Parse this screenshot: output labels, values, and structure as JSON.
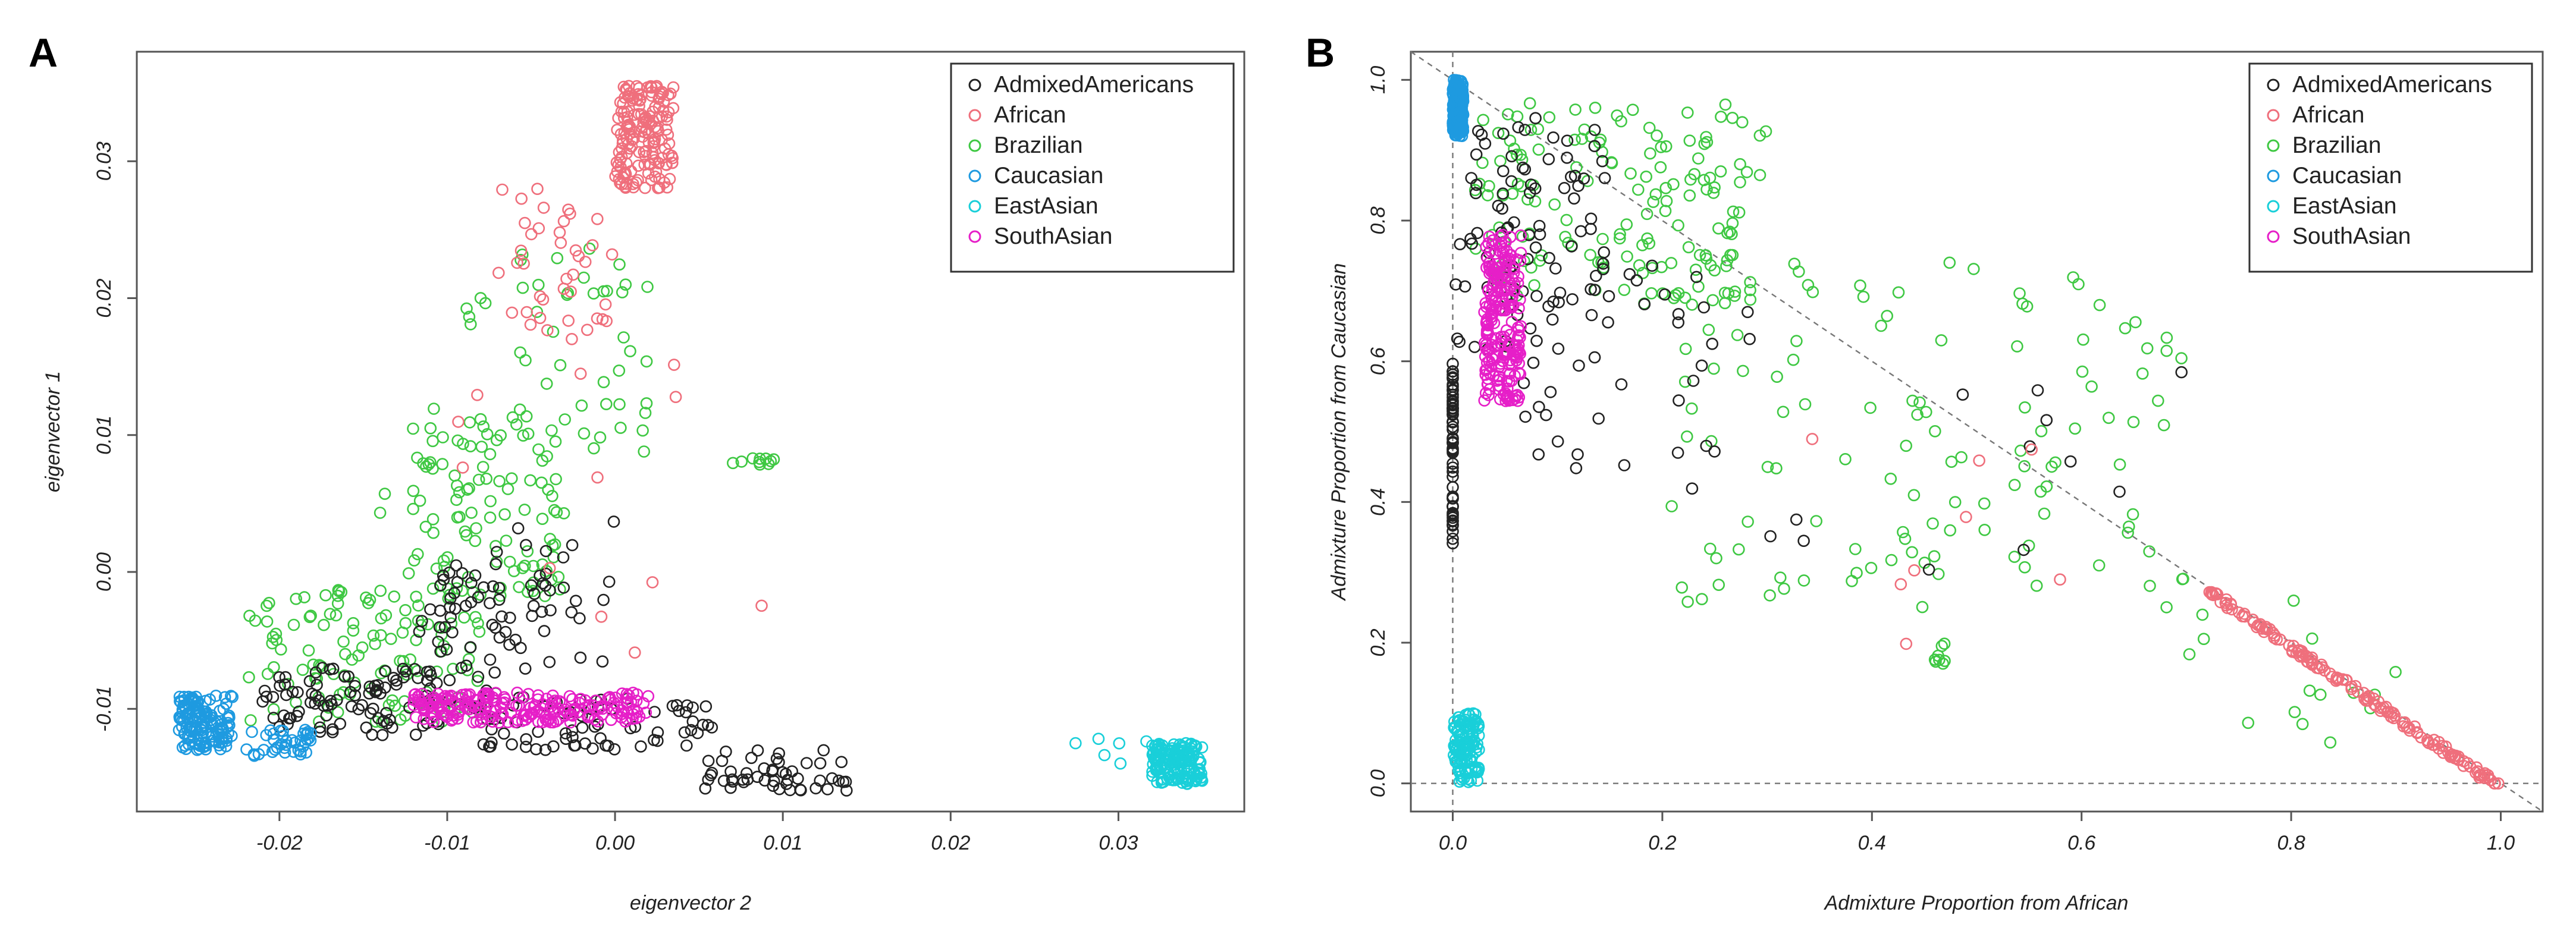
{
  "colors": {
    "AdmixedAmericans": "#222222",
    "African": "#ef6f7c",
    "Brazilian": "#3fc843",
    "Caucasian": "#1e9ae0",
    "EastAsian": "#19cfd9",
    "SouthAsian": "#e61fc8"
  },
  "chart_data": [
    {
      "type": "scatter",
      "panel": "A",
      "title": "",
      "xlabel": "eigenvector 2",
      "ylabel": "eigenvector 1",
      "xlim": [
        -0.0285,
        0.0375
      ],
      "ylim": [
        -0.0175,
        0.038
      ],
      "xticks": [
        -0.02,
        -0.01,
        0.0,
        0.01,
        0.02,
        0.03
      ],
      "xtick_labels": [
        "-0.02",
        "-0.01",
        "0.00",
        "0.01",
        "0.02",
        "0.03"
      ],
      "yticks": [
        -0.01,
        0.0,
        0.01,
        0.02,
        0.03
      ],
      "ytick_labels": [
        "-0.01",
        "0.00",
        "0.01",
        "0.02",
        "0.03"
      ],
      "legend_position": "top-right",
      "legend": [
        "AdmixedAmericans",
        "African",
        "Brazilian",
        "Caucasian",
        "EastAsian",
        "SouthAsian"
      ],
      "series": [
        {
          "name": "AdmixedAmericans",
          "clusters": [
            {
              "x": [
                -0.021,
                -0.01
              ],
              "y": [
                -0.012,
                -0.007
              ],
              "n": 90
            },
            {
              "x": [
                -0.012,
                -0.004
              ],
              "y": [
                -0.01,
                0.0
              ],
              "n": 60
            },
            {
              "x": [
                -0.008,
                0.006
              ],
              "y": [
                -0.013,
                -0.009
              ],
              "n": 70
            },
            {
              "x": [
                0.005,
                0.014
              ],
              "y": [
                -0.016,
                -0.013
              ],
              "n": 50
            },
            {
              "x": [
                -0.01,
                0.0
              ],
              "y": [
                -0.007,
                0.004
              ],
              "n": 30
            }
          ]
        },
        {
          "name": "African",
          "clusters": [
            {
              "x": [
                0.0,
                0.0035
              ],
              "y": [
                0.028,
                0.0355
              ],
              "n": 160
            },
            {
              "x": [
                -0.007,
                0.0
              ],
              "y": [
                0.017,
                0.028
              ],
              "n": 40
            },
            {
              "x": [
                -0.012,
                0.009
              ],
              "y": [
                -0.009,
                0.016
              ],
              "n": 12
            }
          ]
        },
        {
          "name": "Brazilian",
          "clusters": [
            {
              "x": [
                -0.022,
                -0.008
              ],
              "y": [
                -0.011,
                -0.001
              ],
              "n": 120
            },
            {
              "x": [
                -0.014,
                -0.003
              ],
              "y": [
                -0.002,
                0.012
              ],
              "n": 110
            },
            {
              "x": [
                -0.009,
                0.002
              ],
              "y": [
                0.008,
                0.024
              ],
              "n": 50
            },
            {
              "x": [
                0.007,
                0.0095
              ],
              "y": [
                0.0078,
                0.0083
              ],
              "n": 10
            }
          ]
        },
        {
          "name": "Caucasian",
          "clusters": [
            {
              "x": [
                -0.026,
                -0.0228
              ],
              "y": [
                -0.013,
                -0.009
              ],
              "n": 140
            },
            {
              "x": [
                -0.022,
                -0.018
              ],
              "y": [
                -0.0135,
                -0.0115
              ],
              "n": 40
            }
          ]
        },
        {
          "name": "EastAsian",
          "clusters": [
            {
              "x": [
                0.032,
                0.035
              ],
              "y": [
                -0.0155,
                -0.0125
              ],
              "n": 160
            },
            {
              "x": [
                0.027,
                0.032
              ],
              "y": [
                -0.014,
                -0.012
              ],
              "n": 6
            }
          ]
        },
        {
          "name": "SouthAsian",
          "clusters": [
            {
              "x": [
                -0.012,
                0.002
              ],
              "y": [
                -0.011,
                -0.0088
              ],
              "n": 220
            }
          ]
        }
      ]
    },
    {
      "type": "scatter",
      "panel": "B",
      "title": "",
      "xlabel": "Admixture Proportion from African",
      "ylabel": "Admixture Proportion from Caucasian",
      "xlim": [
        -0.04,
        1.04
      ],
      "ylim": [
        -0.04,
        1.04
      ],
      "xticks": [
        0.0,
        0.2,
        0.4,
        0.6,
        0.8,
        1.0
      ],
      "xtick_labels": [
        "0.0",
        "0.2",
        "0.4",
        "0.6",
        "0.8",
        "1.0"
      ],
      "yticks": [
        0.0,
        0.2,
        0.4,
        0.6,
        0.8,
        1.0
      ],
      "ytick_labels": [
        "0.0",
        "0.2",
        "0.4",
        "0.6",
        "0.8",
        "1.0"
      ],
      "reference_lines": [
        "x = 0",
        "y = 0",
        "x + y = 1"
      ],
      "legend_position": "top-right",
      "legend": [
        "AdmixedAmericans",
        "African",
        "Brazilian",
        "Caucasian",
        "EastAsian",
        "SouthAsian"
      ],
      "series": [
        {
          "name": "AdmixedAmericans",
          "clusters": [
            {
              "x": [
                0.0,
                0.0
              ],
              "y": [
                0.34,
                0.6
              ],
              "n": 60
            },
            {
              "x": [
                0.0,
                0.15
              ],
              "y": [
                0.6,
                0.95
              ],
              "n": 90
            },
            {
              "x": [
                0.05,
                0.3
              ],
              "y": [
                0.4,
                0.75
              ],
              "n": 40
            },
            {
              "x": [
                0.3,
                0.7
              ],
              "y": [
                0.3,
                0.6
              ],
              "n": 12
            }
          ]
        },
        {
          "name": "African",
          "clusters": [
            {
              "x": [
                0.72,
                1.0
              ],
              "y": [
                0.0,
                0.27
              ],
              "diagonal": true,
              "n": 150
            },
            {
              "x": [
                0.3,
                0.7
              ],
              "y": [
                0.17,
                0.5
              ],
              "n": 8
            }
          ]
        },
        {
          "name": "Brazilian",
          "clusters": [
            {
              "x": [
                0.02,
                0.3
              ],
              "y": [
                0.68,
                0.97
              ],
              "n": 160
            },
            {
              "x": [
                0.2,
                0.7
              ],
              "y": [
                0.25,
                0.75
              ],
              "n": 120
            },
            {
              "x": [
                0.46,
                0.47
              ],
              "y": [
                0.17,
                0.2
              ],
              "n": 8
            },
            {
              "x": [
                0.7,
                0.9
              ],
              "y": [
                0.05,
                0.28
              ],
              "n": 15
            }
          ]
        },
        {
          "name": "Caucasian",
          "clusters": [
            {
              "x": [
                0.0,
                0.01
              ],
              "y": [
                0.92,
                1.0
              ],
              "n": 200
            }
          ]
        },
        {
          "name": "EastAsian",
          "clusters": [
            {
              "x": [
                0.0,
                0.025
              ],
              "y": [
                0.0,
                0.1
              ],
              "n": 120
            }
          ]
        },
        {
          "name": "SouthAsian",
          "clusters": [
            {
              "x": [
                0.03,
                0.065
              ],
              "y": [
                0.54,
                0.78
              ],
              "n": 220
            }
          ]
        }
      ]
    }
  ],
  "panels": {
    "a": {
      "label": "A"
    },
    "b": {
      "label": "B"
    }
  }
}
